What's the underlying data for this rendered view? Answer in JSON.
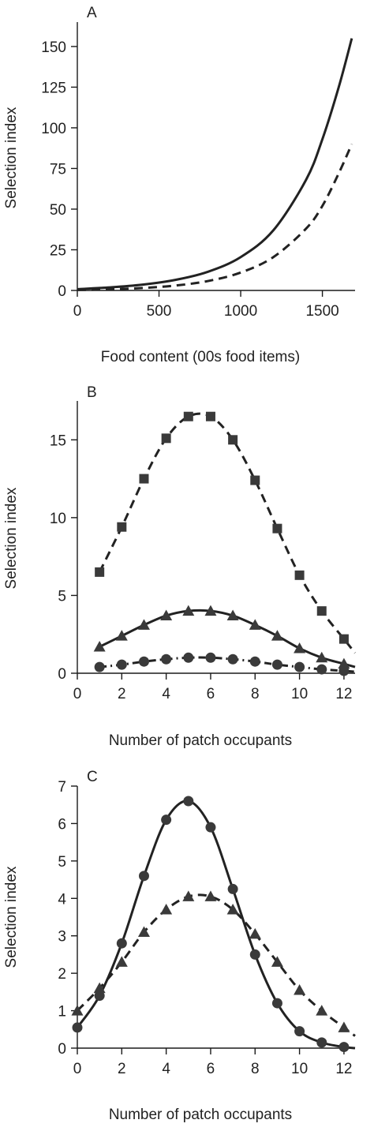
{
  "chart_data": [
    {
      "type": "line",
      "panel": "A",
      "xlabel": "Food content (00s food items)",
      "ylabel": "Selection index",
      "xlim": [
        0,
        1700
      ],
      "ylim": [
        0,
        165
      ],
      "xticks": [
        0,
        500,
        1000,
        1500
      ],
      "yticks": [
        0,
        25,
        50,
        75,
        100,
        125,
        150
      ],
      "series": [
        {
          "style": "solid",
          "marker": "none",
          "x": [
            0,
            200,
            400,
            600,
            800,
            1000,
            1200,
            1400,
            1500,
            1600,
            1680
          ],
          "y": [
            0.8,
            1.9,
            3.6,
            6.5,
            11.5,
            20.5,
            37,
            68,
            93,
            125,
            155
          ]
        },
        {
          "style": "dashed",
          "marker": "none",
          "x": [
            0,
            200,
            400,
            600,
            800,
            1000,
            1200,
            1400,
            1500,
            1600,
            1680
          ],
          "y": [
            0.3,
            0.7,
            1.5,
            3,
            5.8,
            11,
            20.5,
            38,
            52,
            72,
            90
          ]
        }
      ]
    },
    {
      "type": "line",
      "panel": "B",
      "xlabel": "Number of patch occupants",
      "ylabel": "Selection index",
      "xlim": [
        0,
        12.5
      ],
      "ylim": [
        0,
        17.5
      ],
      "xticks": [
        0,
        2,
        4,
        6,
        8,
        10,
        12
      ],
      "yticks": [
        0,
        5,
        10,
        15
      ],
      "series": [
        {
          "style": "dashed",
          "marker": "square",
          "x": [
            1,
            2,
            3,
            4,
            5,
            6,
            7,
            8,
            9,
            10,
            11,
            12
          ],
          "y": [
            6.5,
            9.4,
            12.5,
            15.1,
            16.5,
            16.5,
            15.0,
            12.4,
            9.3,
            6.3,
            4.0,
            2.2
          ]
        },
        {
          "style": "solid",
          "marker": "triangle",
          "x": [
            1,
            2,
            3,
            4,
            5,
            6,
            7,
            8,
            9,
            10,
            11,
            12
          ],
          "y": [
            1.7,
            2.4,
            3.1,
            3.7,
            4.0,
            4.0,
            3.7,
            3.1,
            2.4,
            1.6,
            1.0,
            0.6
          ]
        },
        {
          "style": "dash-dot",
          "marker": "circle",
          "x": [
            1,
            2,
            3,
            4,
            5,
            6,
            7,
            8,
            9,
            10,
            11,
            12
          ],
          "y": [
            0.4,
            0.55,
            0.75,
            0.9,
            1.0,
            1.0,
            0.9,
            0.75,
            0.55,
            0.4,
            0.25,
            0.15
          ]
        }
      ]
    },
    {
      "type": "line",
      "panel": "C",
      "xlabel": "Number of patch occupants",
      "ylabel": "Selection index",
      "xlim": [
        0,
        12.5
      ],
      "ylim": [
        0,
        7
      ],
      "xticks": [
        0,
        2,
        4,
        6,
        8,
        10,
        12
      ],
      "yticks": [
        0,
        1,
        2,
        3,
        4,
        5,
        6,
        7
      ],
      "series": [
        {
          "style": "solid",
          "marker": "circle",
          "x": [
            0,
            1,
            2,
            3,
            4,
            5,
            6,
            7,
            8,
            9,
            10,
            11,
            12
          ],
          "y": [
            0.55,
            1.4,
            2.8,
            4.6,
            6.1,
            6.6,
            5.9,
            4.25,
            2.5,
            1.2,
            0.45,
            0.15,
            0.03
          ]
        },
        {
          "style": "dashed",
          "marker": "triangle",
          "x": [
            0,
            1,
            2,
            3,
            4,
            5,
            6,
            7,
            8,
            9,
            10,
            11,
            12
          ],
          "y": [
            1.0,
            1.6,
            2.3,
            3.1,
            3.7,
            4.05,
            4.05,
            3.7,
            3.05,
            2.3,
            1.55,
            1.0,
            0.55
          ]
        }
      ]
    }
  ]
}
